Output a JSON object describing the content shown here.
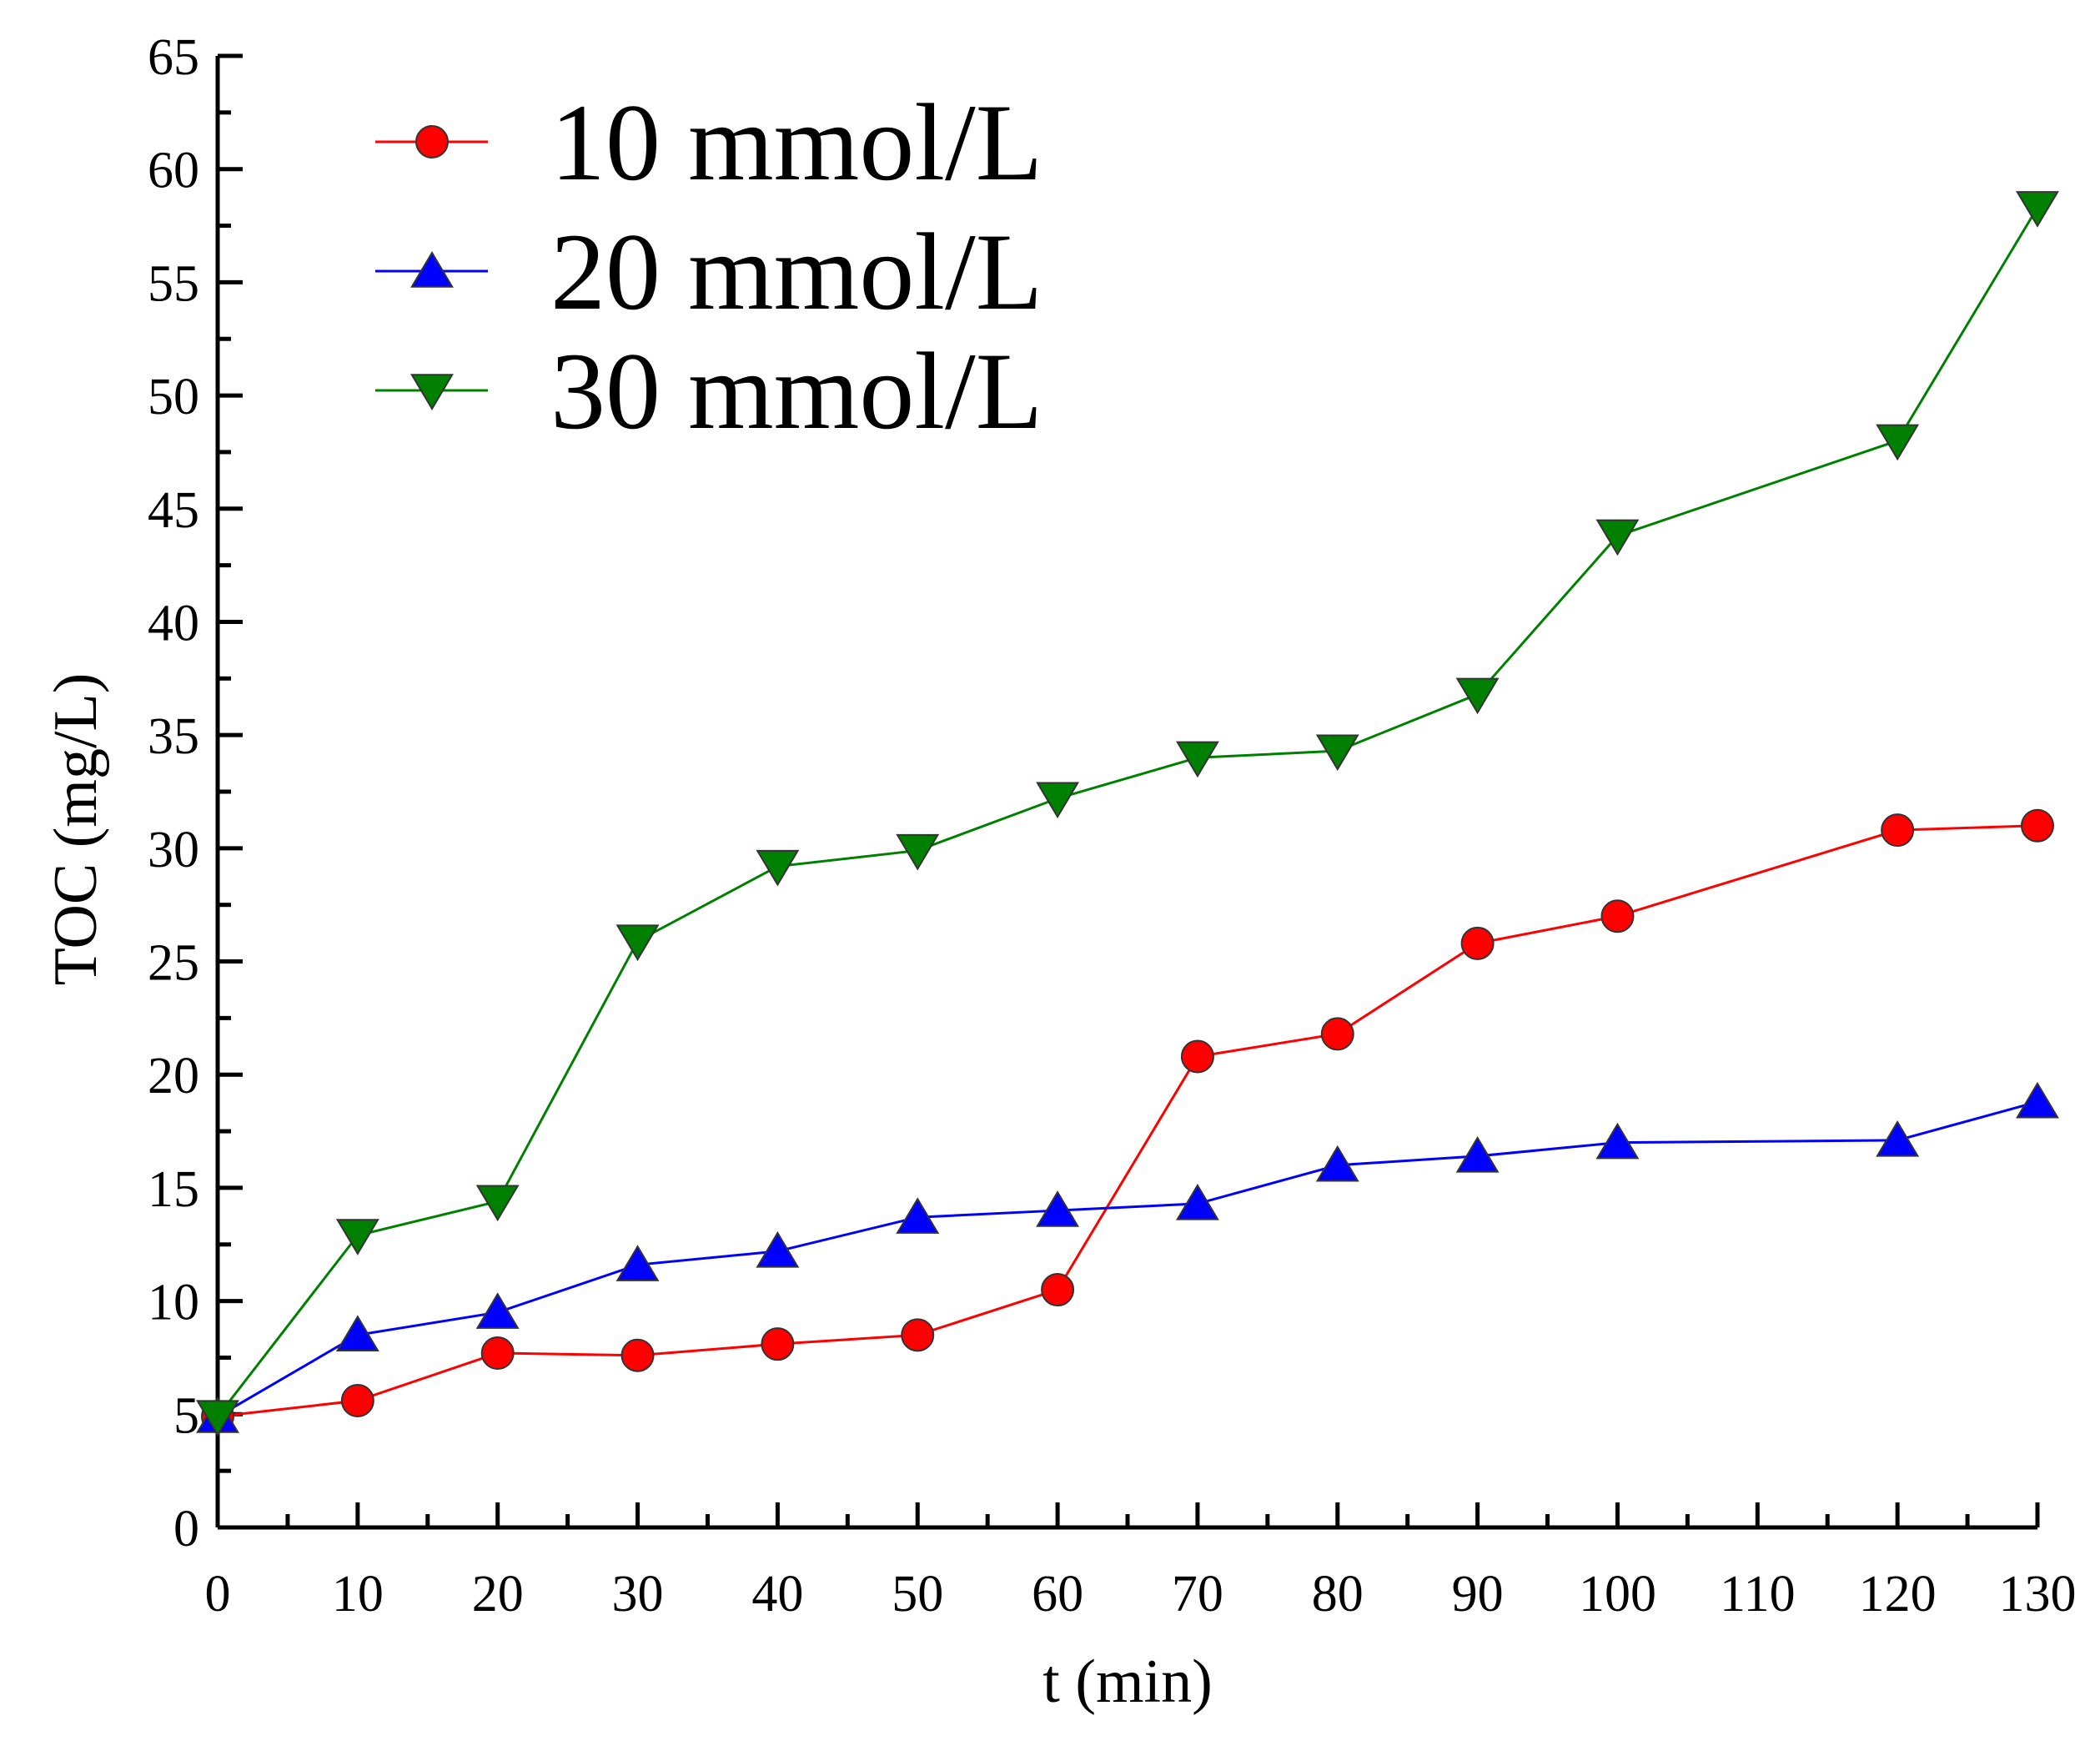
{
  "chart_data": {
    "type": "line",
    "title": "",
    "xlabel": "t (min)",
    "ylabel": "TOC (mg/L)",
    "xlim": [
      0,
      130
    ],
    "ylim": [
      0,
      65
    ],
    "x_ticks": [
      0,
      10,
      20,
      30,
      40,
      50,
      60,
      70,
      80,
      90,
      100,
      110,
      120,
      130
    ],
    "y_ticks": [
      0,
      5,
      10,
      15,
      20,
      25,
      30,
      35,
      40,
      45,
      50,
      55,
      60,
      65
    ],
    "x_tick_labels": [
      "0",
      "10",
      "20",
      "30",
      "40",
      "50",
      "60",
      "70",
      "80",
      "90",
      "100",
      "110",
      "120",
      "130"
    ],
    "y_tick_labels": [
      "0",
      "5",
      "10",
      "15",
      "20",
      "25",
      "30",
      "35",
      "40",
      "45",
      "50",
      "55",
      "60",
      "65"
    ],
    "legend_position": "top-left",
    "grid": false,
    "series": [
      {
        "name": "10 mmol/L",
        "color": "#ff0000",
        "marker": "circle",
        "x": [
          0,
          10,
          20,
          30,
          40,
          50,
          60,
          70,
          80,
          90,
          100,
          120,
          130
        ],
        "y": [
          4.9,
          5.6,
          7.7,
          7.6,
          8.1,
          8.5,
          10.5,
          20.8,
          21.8,
          25.8,
          27.0,
          30.8,
          31.0
        ]
      },
      {
        "name": "20 mmol/L",
        "color": "#0000ff",
        "marker": "triangle-up",
        "x": [
          0,
          10,
          20,
          30,
          40,
          50,
          60,
          70,
          80,
          90,
          100,
          120,
          130
        ],
        "y": [
          4.9,
          8.5,
          9.5,
          11.6,
          12.2,
          13.7,
          14.0,
          14.3,
          16.0,
          16.4,
          17.0,
          17.1,
          18.8
        ]
      },
      {
        "name": "30 mmol/L",
        "color": "#008000",
        "marker": "triangle-down",
        "x": [
          0,
          10,
          20,
          30,
          40,
          50,
          60,
          70,
          80,
          90,
          100,
          120,
          130
        ],
        "y": [
          4.9,
          12.9,
          14.4,
          25.9,
          29.2,
          29.9,
          32.2,
          34.0,
          34.3,
          36.8,
          43.8,
          48.0,
          58.3
        ]
      }
    ]
  }
}
